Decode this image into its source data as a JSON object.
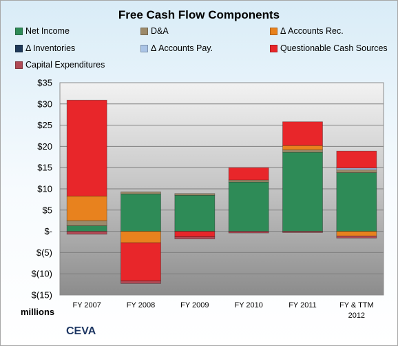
{
  "chart_data": {
    "type": "bar",
    "stacked": true,
    "title": "Free Cash Flow Components",
    "ylabel": "millions",
    "company": "CEVA",
    "categories": [
      "FY 2007",
      "FY 2008",
      "FY 2009",
      "FY 2010",
      "FY 2011",
      "FY & TTM 2012"
    ],
    "y_ticks": [
      "$35",
      "$30",
      "$25",
      "$20",
      "$15",
      "$10",
      "$5",
      "$-",
      "$(5)",
      "$(10)",
      "$(15)"
    ],
    "ylim": [
      -15,
      35
    ],
    "grid": true,
    "legend_position": "top",
    "series": [
      {
        "name": "Net Income",
        "color": "#2e8b57",
        "values": [
          1.3,
          8.8,
          8.5,
          11.6,
          18.6,
          13.8
        ]
      },
      {
        "name": "D&A",
        "color": "#9c8a6a",
        "values": [
          1.2,
          0.5,
          0.4,
          0.5,
          0.6,
          0.7
        ]
      },
      {
        "name": "Δ Accounts Rec.",
        "color": "#e8821e",
        "values": [
          5.8,
          -2.7,
          0,
          0,
          1.0,
          -1.1
        ]
      },
      {
        "name": "Δ Inventories",
        "color": "#1f3a5a",
        "values": [
          0,
          0,
          0,
          0,
          0,
          0
        ]
      },
      {
        "name": "Δ Accounts Pay.",
        "color": "#aac4e6",
        "values": [
          0,
          0,
          0,
          0,
          0,
          0.4
        ]
      },
      {
        "name": "Questionable Cash Sources",
        "color": "#e8262a",
        "values": [
          22.6,
          -9.0,
          -1.3,
          2.9,
          5.6,
          4.0
        ]
      },
      {
        "name": "Capital Expenditures",
        "color": "#b04a55",
        "values": [
          -0.7,
          -0.6,
          -0.5,
          -0.4,
          -0.3,
          -0.5
        ]
      }
    ]
  }
}
